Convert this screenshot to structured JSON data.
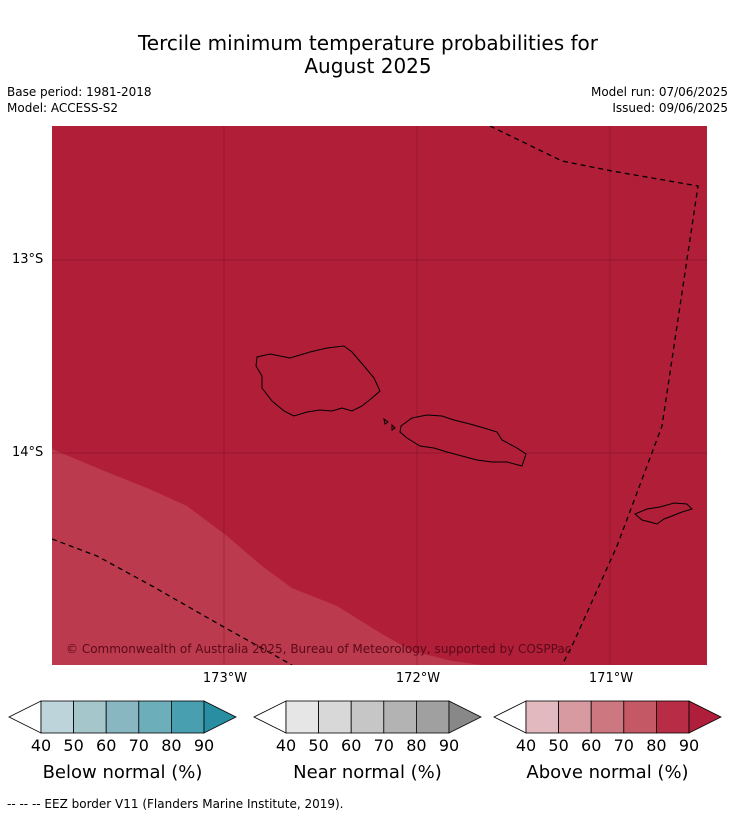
{
  "title_line1": "Tercile minimum temperature probabilities for",
  "title_line2": "August 2025",
  "base_period": "Base period: 1981-2018",
  "model": "Model: ACCESS-S2",
  "model_run": "Model run: 07/06/2025",
  "issued": "Issued: 09/06/2025",
  "lat_labels": [
    "13°S",
    "14°S"
  ],
  "lon_labels": [
    "173°W",
    "172°W",
    "171°W"
  ],
  "copyright": "© Commonwealth of Australia 2025, Bureau of Meteorology, supported by COSPPac",
  "colorbars": [
    {
      "label": "Below normal (%)",
      "ticks": [
        "40",
        "50",
        "60",
        "70",
        "80",
        "90"
      ],
      "colors": [
        "#ffffff",
        "#bed4db",
        "#a5c7cc",
        "#88b7c2",
        "#6daebb",
        "#489fb0",
        "#2a8ea3"
      ]
    },
    {
      "label": "Near normal (%)",
      "ticks": [
        "40",
        "50",
        "60",
        "70",
        "80",
        "90"
      ],
      "colors": [
        "#ffffff",
        "#e6e6e6",
        "#d8d8d8",
        "#c6c6c6",
        "#b3b3b3",
        "#a0a0a0",
        "#888888"
      ]
    },
    {
      "label": "Above normal (%)",
      "ticks": [
        "40",
        "50",
        "60",
        "70",
        "80",
        "90"
      ],
      "colors": [
        "#ffffff",
        "#e2b9bf",
        "#d69aa0",
        "#cd7780",
        "#c45865",
        "#b82d45",
        "#af1e3a"
      ]
    }
  ],
  "footnote": "--  --  -- EEZ border V11 (Flanders Marine Institute, 2019).",
  "colors": {
    "above_90": "#b01e38",
    "above_80": "#bc3a4e"
  }
}
